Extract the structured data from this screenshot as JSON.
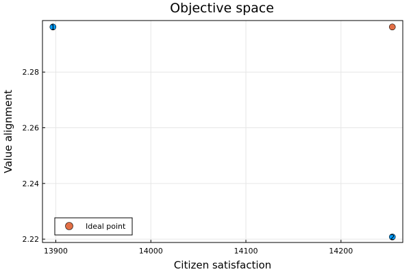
{
  "chart_data": {
    "type": "scatter",
    "title": "Objective space",
    "xlabel": "Citizen satisfaction",
    "ylabel": "Value alignment",
    "xlim": [
      13886,
      14265
    ],
    "ylim": [
      2.2188,
      2.2985
    ],
    "xticks": [
      13900,
      14000,
      14100,
      14200
    ],
    "yticks": [
      2.22,
      2.24,
      2.26,
      2.28
    ],
    "xtick_labels": [
      "13900",
      "14000",
      "14100",
      "14200"
    ],
    "ytick_labels": [
      "2.22",
      "2.24",
      "2.26",
      "2.28"
    ],
    "grid": true,
    "legend_position": "bottom-left",
    "series": [
      {
        "color": "#009AFA",
        "points": [
          {
            "x": 13897,
            "y": 2.2962,
            "label": "1"
          },
          {
            "x": 14254,
            "y": 2.2208,
            "label": "2"
          }
        ]
      },
      {
        "name": "Ideal point",
        "color": "#E26F46",
        "points": [
          {
            "x": 14254,
            "y": 2.2962
          }
        ]
      }
    ]
  }
}
